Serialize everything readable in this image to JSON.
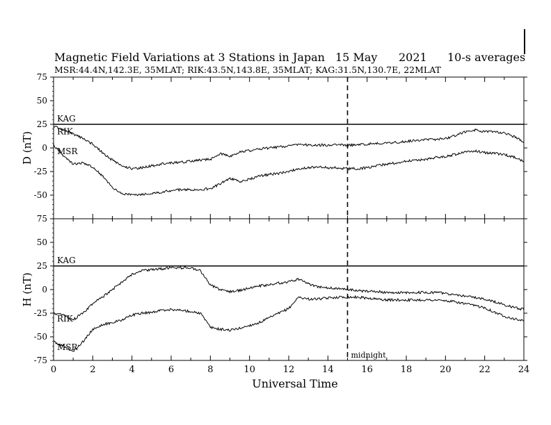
{
  "header": {
    "title": "Magnetic Field Variations at 3 Stations in Japan",
    "date": "15 May",
    "year": "2021",
    "averaging": "10-s averages",
    "stations": "MSR:44.4N,142.3E, 35MLAT;  RIK:43.5N,143.8E, 35MLAT;  KAG:31.5N,130.7E, 22MLAT"
  },
  "chart_data": [
    {
      "type": "line",
      "panel": "D",
      "ylabel": "D (nT)",
      "xlabel": "Universal Time",
      "xlim": [
        0,
        24
      ],
      "ylim": [
        -75,
        75
      ],
      "y_ticks": [
        "75",
        "50",
        "25",
        "0",
        "-25",
        "-50",
        "-75"
      ],
      "annotations": {
        "midnight_x": 15
      },
      "series": [
        {
          "name": "KAG",
          "x": [
            0,
            24
          ],
          "y": [
            25,
            25
          ]
        },
        {
          "name": "RIK",
          "x": [
            0,
            0.5,
            1,
            1.5,
            2,
            2.5,
            3,
            3.5,
            4,
            4.5,
            5,
            5.5,
            6,
            6.5,
            7,
            7.5,
            8,
            8.5,
            9,
            9.5,
            10,
            10.5,
            11,
            11.5,
            12,
            12.5,
            13,
            13.5,
            14,
            14.5,
            15,
            15.5,
            16,
            16.5,
            17,
            17.5,
            18,
            18.5,
            19,
            19.5,
            20,
            20.5,
            21,
            21.5,
            22,
            22.5,
            23,
            23.5,
            24
          ],
          "y": [
            23,
            19,
            15,
            10,
            4,
            -5,
            -13,
            -19,
            -22,
            -21,
            -19,
            -17,
            -16,
            -15,
            -14,
            -13,
            -12,
            -6,
            -9,
            -4,
            -3,
            -1,
            0,
            1,
            2,
            4,
            3,
            3,
            3,
            3,
            3,
            3,
            4,
            5,
            5,
            6,
            7,
            8,
            9,
            9,
            10,
            13,
            17,
            19,
            17,
            17,
            16,
            12,
            6
          ]
        },
        {
          "name": "MSR",
          "x": [
            0,
            0.5,
            1,
            1.5,
            2,
            2.5,
            3,
            3.5,
            4,
            4.5,
            5,
            5.5,
            6,
            6.5,
            7,
            7.5,
            8,
            8.5,
            9,
            9.5,
            10,
            10.5,
            11,
            11.5,
            12,
            12.5,
            13,
            13.5,
            14,
            14.5,
            15,
            15.5,
            16,
            16.5,
            17,
            17.5,
            18,
            18.5,
            19,
            19.5,
            20,
            20.5,
            21,
            21.5,
            22,
            22.5,
            23,
            23.5,
            24
          ],
          "y": [
            3,
            -8,
            -17,
            -16,
            -20,
            -30,
            -42,
            -48,
            -50,
            -49,
            -48,
            -47,
            -45,
            -44,
            -44,
            -44,
            -43,
            -38,
            -32,
            -36,
            -33,
            -30,
            -28,
            -27,
            -25,
            -22,
            -21,
            -20,
            -21,
            -21,
            -22,
            -22,
            -21,
            -19,
            -17,
            -16,
            -14,
            -13,
            -12,
            -10,
            -9,
            -7,
            -4,
            -3,
            -5,
            -6,
            -7,
            -10,
            -14
          ]
        }
      ]
    },
    {
      "type": "line",
      "panel": "H",
      "ylabel": "H (nT)",
      "xlabel": "Universal Time",
      "xlim": [
        0,
        24
      ],
      "ylim": [
        -75,
        75
      ],
      "y_ticks": [
        "75",
        "50",
        "25",
        "0",
        "-25",
        "-50",
        "-75"
      ],
      "x_ticks": [
        "0",
        "2",
        "4",
        "6",
        "8",
        "10",
        "12",
        "14",
        "16",
        "18",
        "20",
        "22",
        "24"
      ],
      "annotations": {
        "midnight_label": "midnight",
        "midnight_x": 15
      },
      "series": [
        {
          "name": "KAG",
          "x": [
            0,
            24
          ],
          "y": [
            25,
            25
          ]
        },
        {
          "name": "RIK",
          "x": [
            0,
            0.5,
            1,
            1.5,
            2,
            2.5,
            3,
            3.5,
            4,
            4.5,
            5,
            5.5,
            6,
            6.5,
            7,
            7.5,
            8,
            8.5,
            9,
            9.5,
            10,
            10.5,
            11,
            11.5,
            12,
            12.5,
            13,
            13.5,
            14,
            14.5,
            15,
            15.5,
            16,
            16.5,
            17,
            17.5,
            18,
            18.5,
            19,
            19.5,
            20,
            20.5,
            21,
            21.5,
            22,
            22.5,
            23,
            23.5,
            24
          ],
          "y": [
            -25,
            -27,
            -32,
            -25,
            -15,
            -8,
            0,
            8,
            16,
            20,
            21,
            22,
            23,
            23,
            23,
            20,
            5,
            0,
            -2,
            -1,
            2,
            4,
            5,
            7,
            8,
            11,
            6,
            3,
            2,
            1,
            0,
            -1,
            -2,
            -2,
            -3,
            -3,
            -3,
            -3,
            -3,
            -3,
            -4,
            -5,
            -7,
            -8,
            -10,
            -13,
            -16,
            -19,
            -21
          ]
        },
        {
          "name": "MSR",
          "x": [
            0,
            0.5,
            1,
            1.5,
            2,
            2.5,
            3,
            3.5,
            4,
            4.5,
            5,
            5.5,
            6,
            6.5,
            7,
            7.5,
            8,
            8.5,
            9,
            9.5,
            10,
            10.5,
            11,
            11.5,
            12,
            12.5,
            13,
            13.5,
            14,
            14.5,
            15,
            15.5,
            16,
            16.5,
            17,
            17.5,
            18,
            18.5,
            19,
            19.5,
            20,
            20.5,
            21,
            21.5,
            22,
            22.5,
            23,
            23.5,
            24
          ],
          "y": [
            -55,
            -60,
            -65,
            -55,
            -42,
            -37,
            -35,
            -32,
            -27,
            -25,
            -24,
            -22,
            -21,
            -22,
            -23,
            -25,
            -40,
            -42,
            -43,
            -41,
            -38,
            -35,
            -30,
            -25,
            -20,
            -8,
            -10,
            -10,
            -9,
            -8,
            -8,
            -8,
            -9,
            -10,
            -11,
            -11,
            -11,
            -11,
            -11,
            -11,
            -12,
            -13,
            -15,
            -17,
            -19,
            -24,
            -28,
            -31,
            -33
          ]
        }
      ]
    }
  ]
}
